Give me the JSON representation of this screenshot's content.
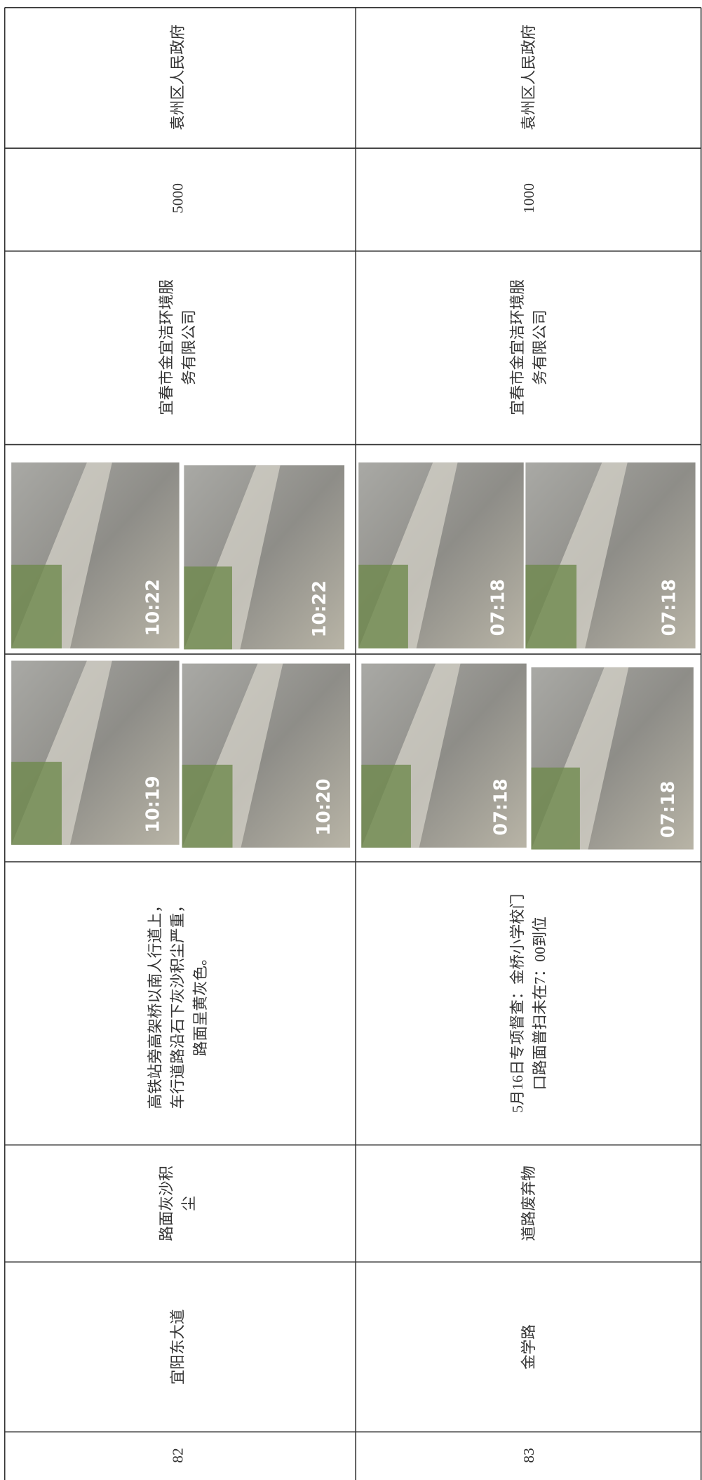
{
  "table": {
    "rows": [
      {
        "no": "82",
        "road": "宜阳东大道",
        "issue": [
          "路面灰沙积",
          "尘"
        ],
        "description": [
          "高铁站旁高架桥以南人行道上，",
          "车行道路沿石下灰沙积尘严重，",
          "路面呈黄灰色。"
        ],
        "photos": [
          "10:19",
          "10:20",
          "10:22",
          "10:22"
        ],
        "company": [
          "宜春市金宜洁环境服",
          "务有限公司"
        ],
        "amount": "5000",
        "authority": "袁州区人民政府"
      },
      {
        "no": "83",
        "road": "金学路",
        "issue": [
          "道路废弃物"
        ],
        "description": [
          "5月16日专项督查：金桥小学校门",
          "口路面普扫未在7：00到位"
        ],
        "photos": [
          "07:18",
          "07:18",
          "07:18",
          "07:18"
        ],
        "company": [
          "宜春市金宜洁环境服",
          "务有限公司"
        ],
        "amount": "1000",
        "authority": "袁州区人民政府"
      }
    ]
  }
}
